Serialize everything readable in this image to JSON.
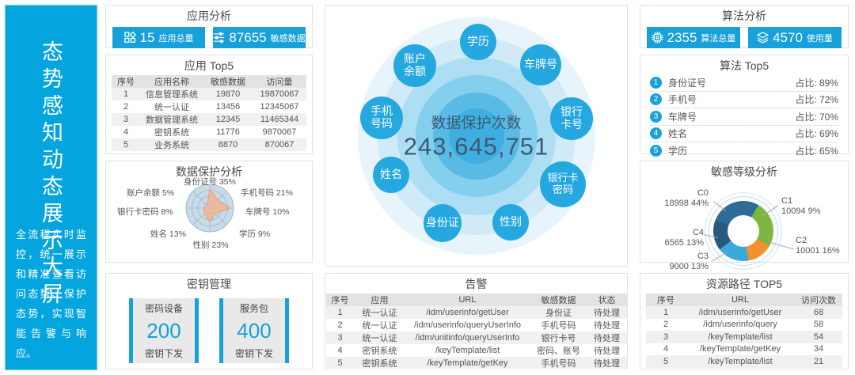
{
  "sidebar": {
    "title": "态势感知动态展示大屏",
    "description": "全流程实时监控，统一展示和精准查看访问态势、保护态势，实现智能告警与响应。"
  },
  "app_analysis": {
    "title": "应用分析",
    "stats": [
      {
        "icon": "apps-grid-icon",
        "value": "15",
        "label": "应用总量"
      },
      {
        "icon": "sliders-icon",
        "value": "87655",
        "label": "敏感数据"
      }
    ]
  },
  "app_top5": {
    "title": "应用 Top5",
    "headers": [
      "序号",
      "应用名称",
      "敏感数据",
      "访问量"
    ],
    "rows": [
      [
        "1",
        "信息管理系统",
        "19870",
        "19870067"
      ],
      [
        "2",
        "统一认证",
        "13456",
        "12345067"
      ],
      [
        "3",
        "数据管理系统",
        "12345",
        "11465344"
      ],
      [
        "4",
        "密钥系统",
        "11776",
        "9870067"
      ],
      [
        "5",
        "业务系统",
        "8870",
        "870067"
      ]
    ]
  },
  "data_protection": {
    "title": "数据保护分析",
    "chart": {
      "type": "radar",
      "axes": [
        "身份证号",
        "手机号码",
        "车牌号",
        "学历",
        "性别",
        "姓名",
        "银行卡密码",
        "账户余额"
      ],
      "values_pct": [
        35,
        21,
        10,
        9,
        23,
        13,
        8,
        5
      ],
      "labels": [
        "身份证号 35%",
        "手机号码 21%",
        "车牌号 10%",
        "学历 9%",
        "性别 23%",
        "姓名 13%",
        "银行卡密码 8%",
        "账户余额 5%"
      ],
      "display_r": [
        0.8,
        0.48,
        0.86,
        0.33,
        0.58,
        0.33,
        0.22,
        0.16
      ],
      "fill_color": "#f2b492",
      "grid_color": "#89aec9"
    }
  },
  "key_management": {
    "title": "密钥管理",
    "cards": [
      {
        "top": "密码设备",
        "value": "200",
        "bottom": "密钥下发"
      },
      {
        "top": "服务包",
        "value": "400",
        "bottom": "密钥下发"
      }
    ]
  },
  "protection_overview": {
    "label": "数据保护次数",
    "value": "243,645,751",
    "bubbles": [
      "学历",
      "车牌号",
      "银行\n卡号",
      "银行卡\n密码",
      "性别",
      "身份证",
      "姓名",
      "手机\n号码",
      "账户\n余额"
    ]
  },
  "alerts": {
    "title": "告警",
    "headers": [
      "序号",
      "应用",
      "URL",
      "敏感数据",
      "状态"
    ],
    "rows": [
      [
        "1",
        "统一认证",
        "/idm/userinfo/getUser",
        "身份证",
        "待处理"
      ],
      [
        "2",
        "统一认证",
        "/idm/userinfo/queryUserInfo",
        "手机号码",
        "待处理"
      ],
      [
        "3",
        "统一认证",
        "/idm/unitinfo/queryUserInfo",
        "银行卡号",
        "待处理"
      ],
      [
        "4",
        "密钥系统",
        "/keyTemplate/list",
        "密码、账号",
        "待处理"
      ],
      [
        "5",
        "密钥系统",
        "/keyTemplate/getKey",
        "手机号码",
        "待处理"
      ]
    ]
  },
  "algo_analysis": {
    "title": "算法分析",
    "stats": [
      {
        "icon": "chip-icon",
        "value": "2355",
        "label": "算法总量"
      },
      {
        "icon": "layers-icon",
        "value": "4570",
        "label": "使用量"
      }
    ]
  },
  "algo_top5": {
    "title": "算法 Top5",
    "items": [
      {
        "rank": "1",
        "label": "身份证号",
        "value": "占比: 89%"
      },
      {
        "rank": "2",
        "label": "手机号",
        "value": "占比: 72%"
      },
      {
        "rank": "3",
        "label": "车牌号",
        "value": "占比: 70%"
      },
      {
        "rank": "4",
        "label": "姓名",
        "value": "占比: 69%"
      },
      {
        "rank": "5",
        "label": "学历",
        "value": "占比: 65%"
      }
    ]
  },
  "sensitivity": {
    "title": "敏感等级分析",
    "chart": {
      "type": "pie",
      "start_deg_from_top": 30,
      "segments": [
        {
          "name": "C1",
          "text": "10094 9%",
          "color": "#7db742",
          "deg": 90
        },
        {
          "name": "C2",
          "text": "10001 16%",
          "color": "#f0922e",
          "deg": 50
        },
        {
          "name": "C3",
          "text": "9000 13%",
          "color": "#3ba8dc",
          "deg": 62
        },
        {
          "name": "C4",
          "text": "6565 13%",
          "color": "#27597f",
          "deg": 60
        },
        {
          "name": "C0",
          "text": "18998 44%",
          "color": "#2f6b99",
          "deg": 98
        }
      ]
    }
  },
  "resource_top5": {
    "title": "资源路径 TOP5",
    "headers": [
      "序号",
      "URL",
      "访问次数"
    ],
    "rows": [
      [
        "1",
        "/idm/userinfo/getUser",
        "68"
      ],
      [
        "2",
        "/idm/userinfo/query",
        "58"
      ],
      [
        "3",
        "/keyTemplate/list",
        "54"
      ],
      [
        "4",
        "/keyTemplate/getKey",
        "34"
      ],
      [
        "5",
        "/keyTemplate/list",
        "21"
      ]
    ]
  },
  "colors": {
    "accent": "#17a0da",
    "sidebar": "#04a5df"
  }
}
